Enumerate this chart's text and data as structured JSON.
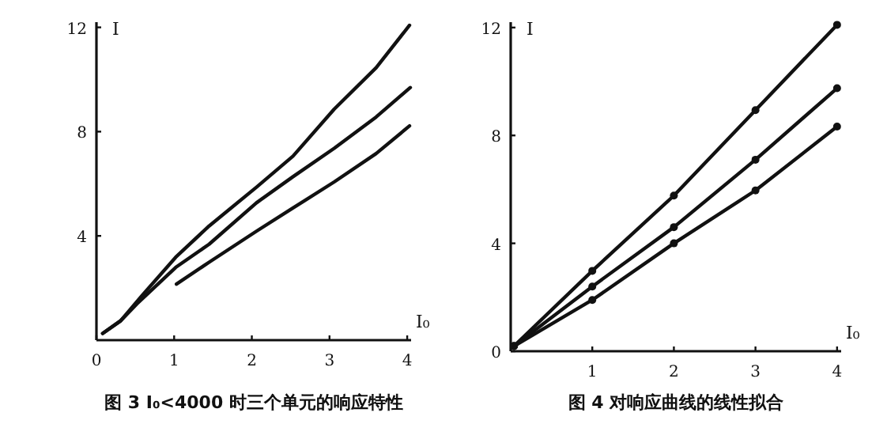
{
  "chart_data": [
    {
      "type": "line",
      "title": "图 3  I₀<4000 时三个单元的响应特性",
      "xlabel": "I₀",
      "ylabel": "I",
      "xlim": [
        0,
        4.05
      ],
      "ylim": [
        0,
        12.2
      ],
      "xticks": [
        0,
        1,
        2,
        3,
        4
      ],
      "yticks": [
        4,
        8,
        12
      ],
      "color": "#111111",
      "series": [
        {
          "x": [
            0.08,
            0.31,
            0.58,
            1.02,
            1.45,
            2.06,
            2.53,
            3.06,
            3.6,
            4.03
          ],
          "values": [
            0.26,
            0.74,
            1.69,
            3.18,
            4.38,
            5.87,
            7.06,
            8.86,
            10.45,
            12.08
          ]
        },
        {
          "x": [
            0.08,
            0.31,
            0.52,
            1.02,
            1.45,
            2.06,
            2.53,
            3.06,
            3.6,
            4.04
          ],
          "values": [
            0.26,
            0.74,
            1.39,
            2.79,
            3.68,
            5.27,
            6.27,
            7.36,
            8.56,
            9.69
          ]
        },
        {
          "x": [
            1.03,
            1.45,
            2.06,
            2.53,
            3.06,
            3.6,
            4.03
          ],
          "values": [
            2.15,
            2.99,
            4.18,
            5.07,
            6.07,
            7.16,
            8.22
          ]
        }
      ]
    },
    {
      "type": "line",
      "title": "图 4  对响应曲线的线性拟合",
      "xlabel": "I₀",
      "ylabel": "I",
      "xlim": [
        0,
        4.05
      ],
      "ylim": [
        0,
        12.2
      ],
      "xticks": [
        1,
        2,
        3,
        4
      ],
      "yticks": [
        0,
        4,
        8,
        12
      ],
      "color": "#111111",
      "marker": "circle",
      "series": [
        {
          "x": [
            0.04,
            1,
            2,
            3,
            4
          ],
          "values": [
            0.19,
            2.98,
            5.77,
            8.94,
            12.1
          ]
        },
        {
          "x": [
            0.04,
            1,
            2,
            3,
            4
          ],
          "values": [
            0.19,
            2.4,
            4.6,
            7.1,
            9.75
          ]
        },
        {
          "x": [
            0.04,
            1,
            2,
            3,
            4
          ],
          "values": [
            0.19,
            1.9,
            4.0,
            5.96,
            8.33
          ]
        }
      ]
    }
  ]
}
